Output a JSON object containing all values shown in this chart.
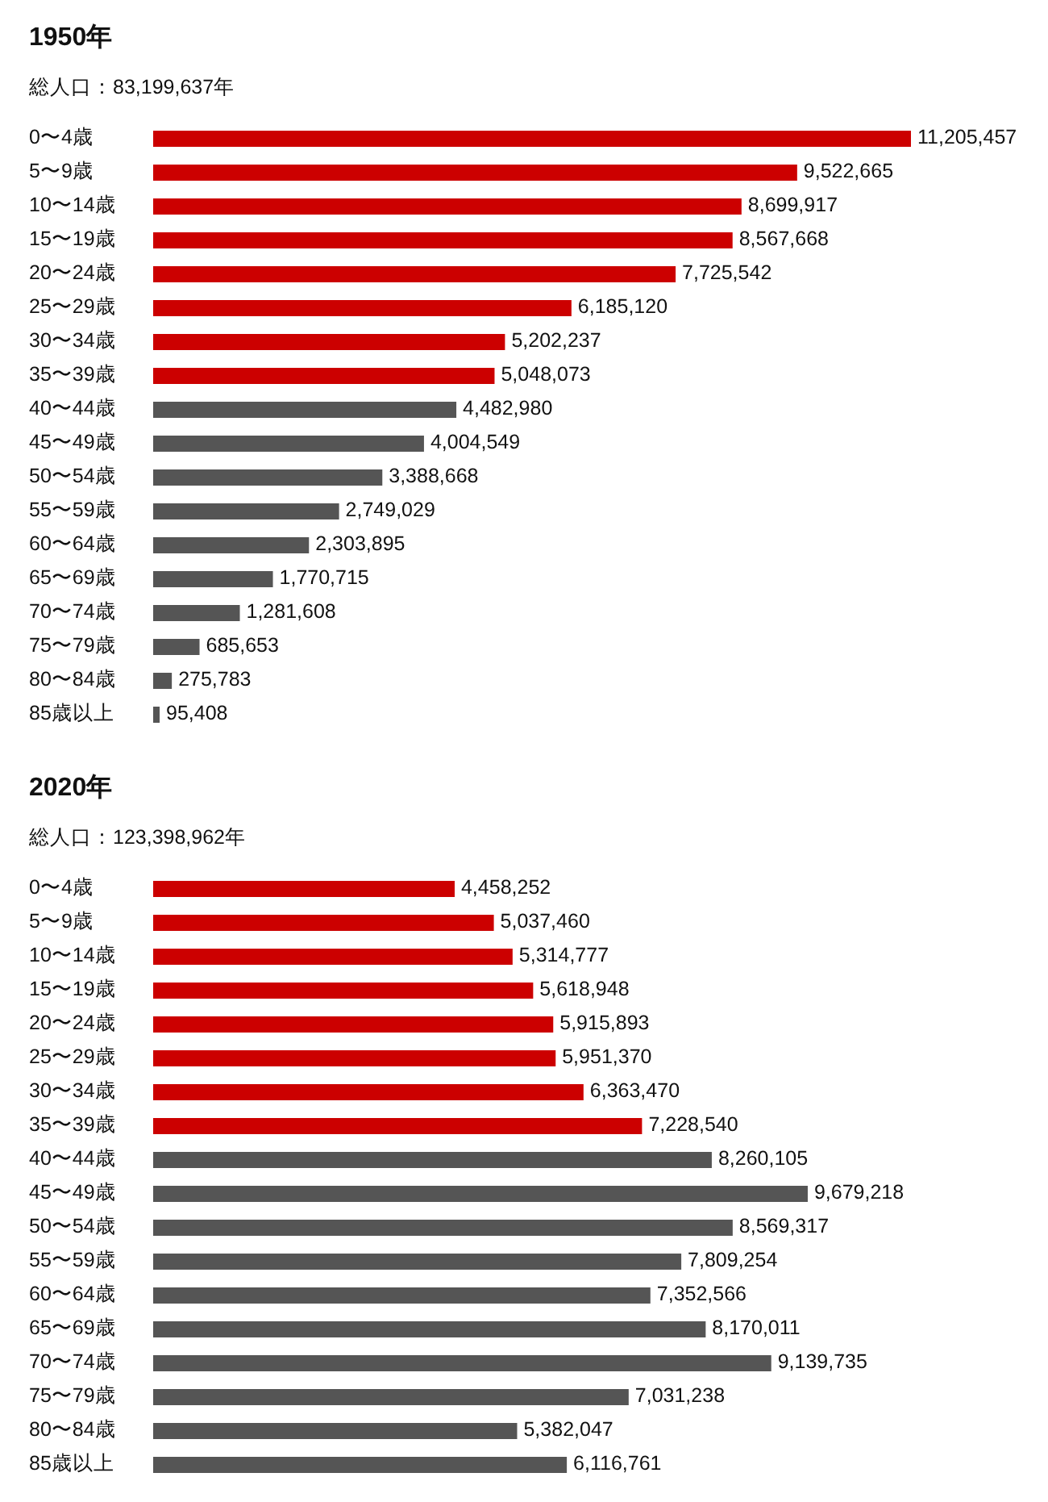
{
  "chart_data": [
    {
      "type": "bar",
      "orientation": "horizontal",
      "title": "1950年",
      "subtitle": "総人口：83,199,637年",
      "categories": [
        "0〜4歳",
        "5〜9歳",
        "10〜14歳",
        "15〜19歳",
        "20〜24歳",
        "25〜29歳",
        "30〜34歳",
        "35〜39歳",
        "40〜44歳",
        "45〜49歳",
        "50〜54歳",
        "55〜59歳",
        "60〜64歳",
        "65〜69歳",
        "70〜74歳",
        "75〜79歳",
        "80〜84歳",
        "85歳以上"
      ],
      "values": [
        11205457,
        9522665,
        8699917,
        8567668,
        7725542,
        6185120,
        5202237,
        5048073,
        4482980,
        4004549,
        3388668,
        2749029,
        2303895,
        1770715,
        1281608,
        685653,
        275783,
        95408
      ],
      "value_labels": [
        "11,205,457",
        "9,522,665",
        "8,699,917",
        "8,567,668",
        "7,725,542",
        "6,185,120",
        "5,202,237",
        "5,048,073",
        "4,482,980",
        "4,004,549",
        "3,388,668",
        "2,749,029",
        "2,303,895",
        "1,770,715",
        "1,281,608",
        "685,653",
        "275,783",
        "95,408"
      ],
      "colors": [
        "#cc0000",
        "#cc0000",
        "#cc0000",
        "#cc0000",
        "#cc0000",
        "#cc0000",
        "#cc0000",
        "#cc0000",
        "#555555",
        "#555555",
        "#555555",
        "#555555",
        "#555555",
        "#555555",
        "#555555",
        "#555555",
        "#555555",
        "#555555"
      ]
    },
    {
      "type": "bar",
      "orientation": "horizontal",
      "title": "2020年",
      "subtitle": "総人口：123,398,962年",
      "categories": [
        "0〜4歳",
        "5〜9歳",
        "10〜14歳",
        "15〜19歳",
        "20〜24歳",
        "25〜29歳",
        "30〜34歳",
        "35〜39歳",
        "40〜44歳",
        "45〜49歳",
        "50〜54歳",
        "55〜59歳",
        "60〜64歳",
        "65〜69歳",
        "70〜74歳",
        "75〜79歳",
        "80〜84歳",
        "85歳以上"
      ],
      "values": [
        4458252,
        5037460,
        5314777,
        5618948,
        5915893,
        5951370,
        6363470,
        7228540,
        8260105,
        9679218,
        8569317,
        7809254,
        7352566,
        8170011,
        9139735,
        7031238,
        5382047,
        6116761
      ],
      "value_labels": [
        "4,458,252",
        "5,037,460",
        "5,314,777",
        "5,618,948",
        "5,915,893",
        "5,951,370",
        "6,363,470",
        "7,228,540",
        "8,260,105",
        "9,679,218",
        "8,569,317",
        "7,809,254",
        "7,352,566",
        "8,170,011",
        "9,139,735",
        "7,031,238",
        "5,382,047",
        "6,116,761"
      ],
      "colors": [
        "#cc0000",
        "#cc0000",
        "#cc0000",
        "#cc0000",
        "#cc0000",
        "#cc0000",
        "#cc0000",
        "#cc0000",
        "#555555",
        "#555555",
        "#555555",
        "#555555",
        "#555555",
        "#555555",
        "#555555",
        "#555555",
        "#555555",
        "#555555"
      ]
    }
  ]
}
